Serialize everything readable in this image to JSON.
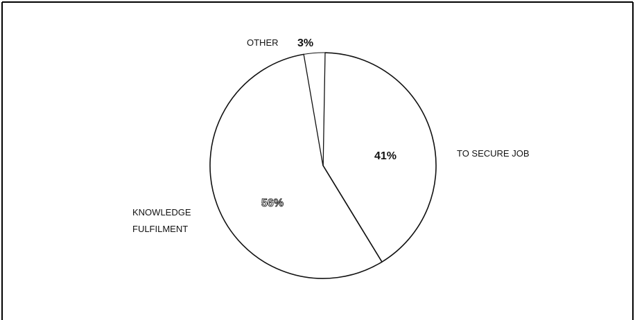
{
  "chart_data": {
    "type": "pie",
    "slices": [
      {
        "label": "TO SECURE JOB",
        "value": 41,
        "value_label": "41%"
      },
      {
        "label": "KNOWLEDGE FULFILMENT",
        "value": 56,
        "value_label": "56%"
      },
      {
        "label": "OTHER",
        "value": 3,
        "value_label": "3%"
      }
    ],
    "colors": {
      "fill": "#ffffff",
      "stroke": "#111111",
      "frame": "#000000"
    }
  }
}
